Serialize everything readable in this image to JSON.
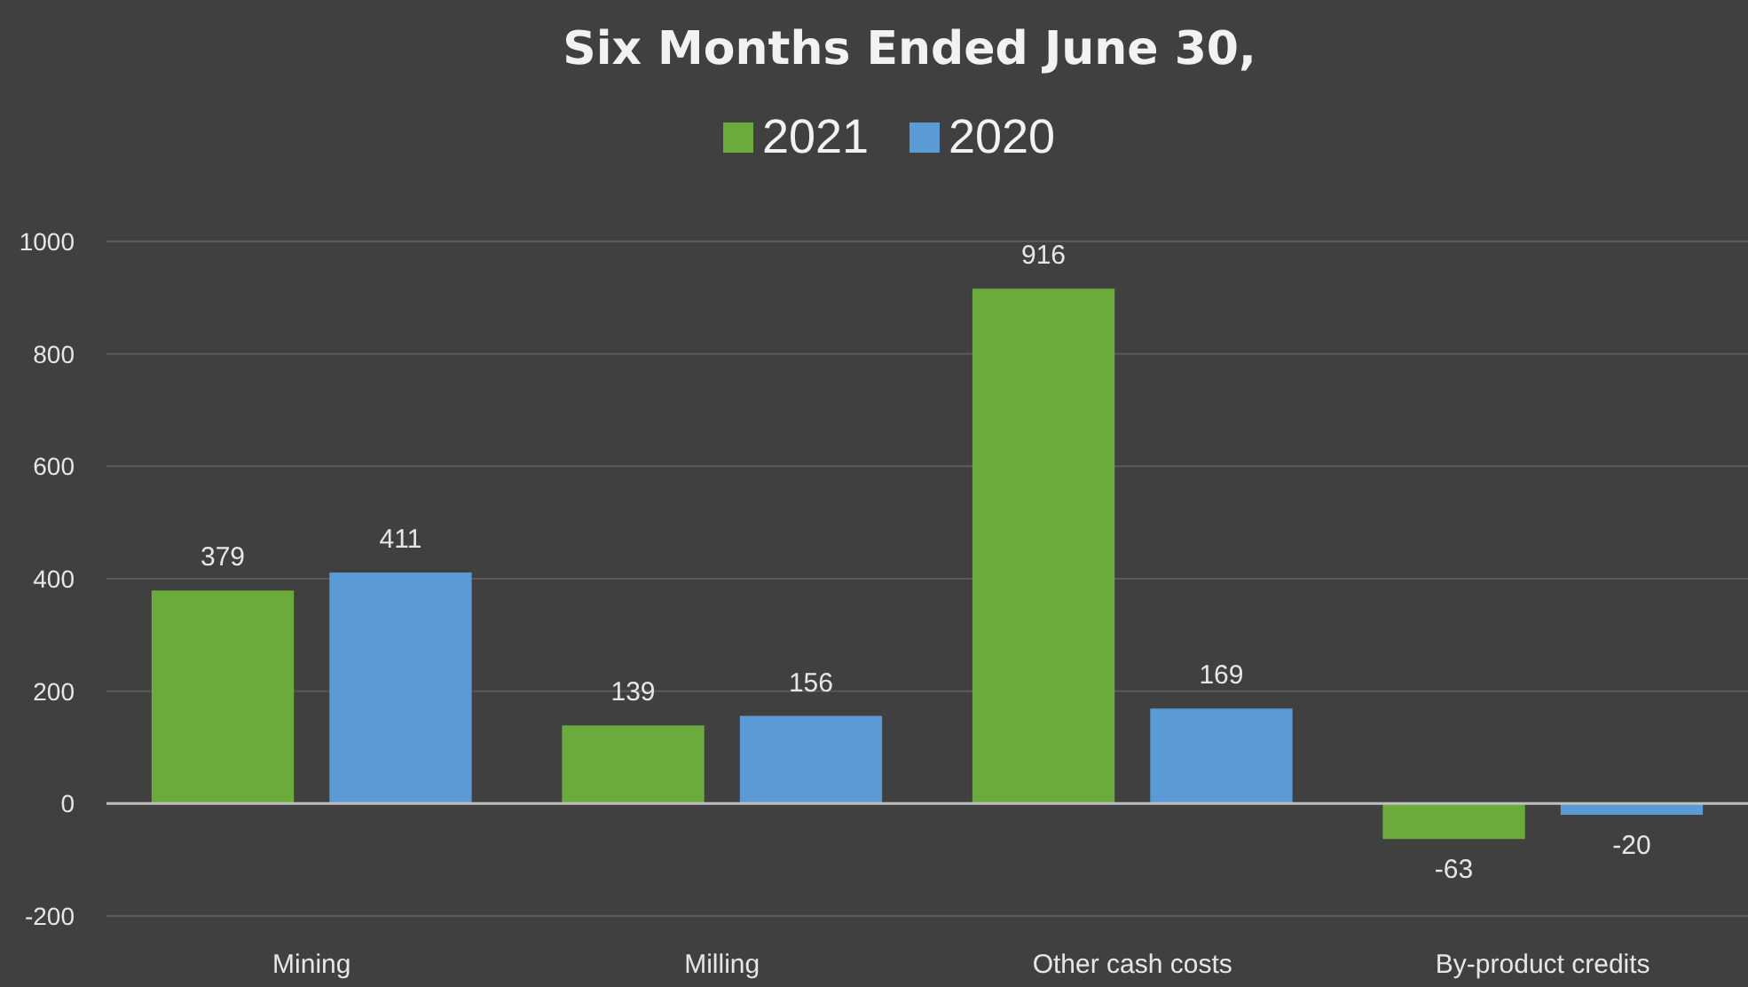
{
  "chart_data": {
    "type": "bar",
    "title": "Six Months Ended June 30,",
    "categories": [
      "Mining",
      "Milling",
      "Other cash costs",
      "By-product credits"
    ],
    "series": [
      {
        "name": "2021",
        "color": "#6aab3c",
        "values": [
          379,
          139,
          916,
          -63
        ]
      },
      {
        "name": "2020",
        "color": "#5b9bd5",
        "values": [
          411,
          156,
          169,
          -20
        ]
      }
    ],
    "ylim": [
      -200,
      1000
    ],
    "yticks": [
      -200,
      0,
      200,
      400,
      600,
      800,
      1000
    ],
    "grid": "y",
    "legend": "top",
    "data_labels": true
  }
}
